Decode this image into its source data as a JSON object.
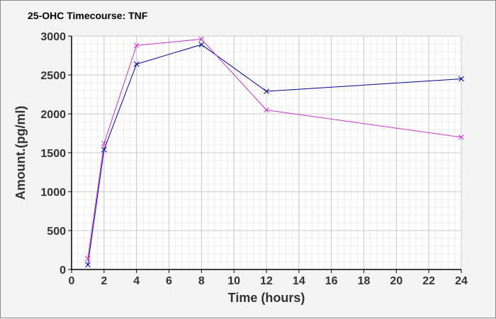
{
  "chart_data": {
    "type": "line",
    "title": "25-OHC Timecourse: TNF",
    "xlabel": "Time (hours)",
    "ylabel": "Amount.(pg/ml)",
    "xlim": [
      0,
      24
    ],
    "ylim": [
      0,
      3000
    ],
    "xticks": [
      0,
      2,
      4,
      6,
      8,
      10,
      12,
      14,
      16,
      18,
      20,
      22,
      24
    ],
    "yticks": [
      0,
      500,
      1000,
      1500,
      2000,
      2500,
      3000
    ],
    "grid": true,
    "marker": "x",
    "series": [
      {
        "color": "#000099",
        "x": [
          1,
          2,
          4,
          8,
          12,
          24
        ],
        "y": [
          60,
          1540,
          2640,
          2890,
          2290,
          2450
        ]
      },
      {
        "color": "#cc33cc",
        "x": [
          1,
          2,
          4,
          8,
          12,
          24
        ],
        "y": [
          140,
          1620,
          2880,
          2960,
          2050,
          1700
        ]
      }
    ]
  }
}
